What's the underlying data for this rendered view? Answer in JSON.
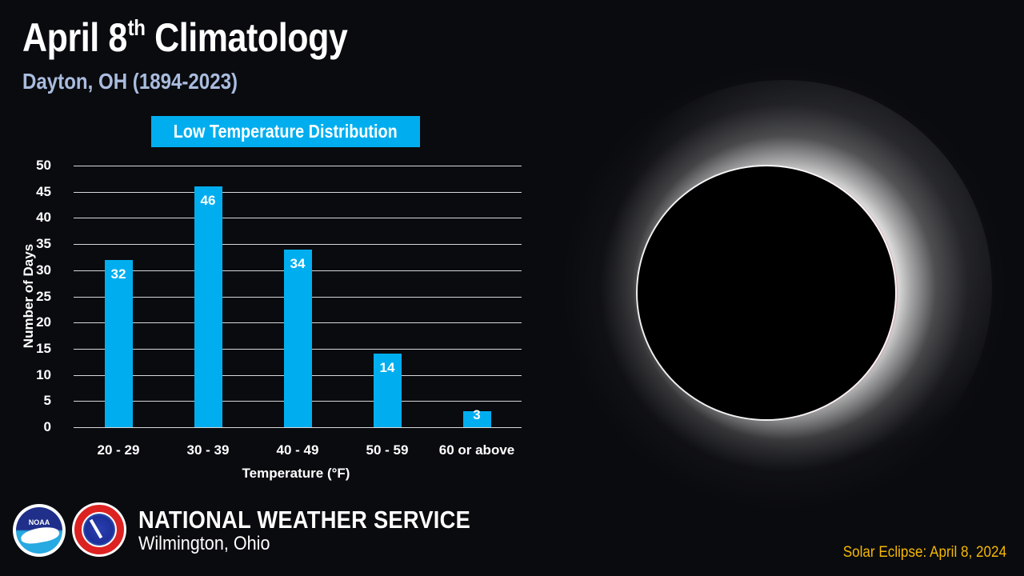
{
  "header": {
    "title_main": "April 8",
    "title_sup": "th",
    "title_rest": "Climatology",
    "subtitle": "Dayton, OH (1894-2023)"
  },
  "chart_data": {
    "type": "bar",
    "title": "Low Temperature Distribution",
    "categories": [
      "20 - 29",
      "30 - 39",
      "40 - 49",
      "50 - 59",
      "60 or above"
    ],
    "values": [
      32,
      46,
      34,
      14,
      3
    ],
    "data_labels": [
      "32",
      "46",
      "34",
      "14",
      "3"
    ],
    "xlabel": "Temperature (°F)",
    "ylabel": "Number of Days",
    "ylim": [
      0,
      50
    ],
    "yticks": [
      "0",
      "5",
      "10",
      "15",
      "20",
      "25",
      "30",
      "35",
      "40",
      "45",
      "50"
    ],
    "grid": true,
    "legend": null,
    "bar_color": "#00aeef"
  },
  "footer": {
    "logo_noaa_text": "NOAA",
    "org_name": "National Weather Service",
    "office": "Wilmington, Ohio",
    "caption": "Solar Eclipse: April 8, 2024"
  },
  "colors": {
    "background": "#0a0b0f",
    "accent": "#00aeef",
    "subtitle": "#a9bcde",
    "caption": "#f5b800"
  }
}
